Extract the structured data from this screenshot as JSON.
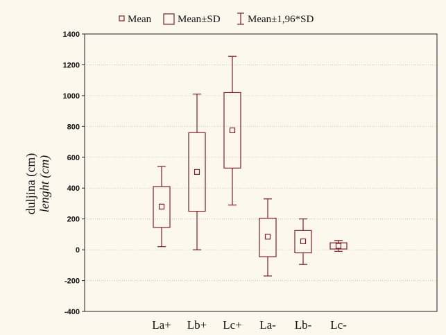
{
  "chart_data": {
    "type": "box",
    "categories": [
      "La+",
      "Lb+",
      "Lc+",
      "La-",
      "Lb-",
      "Lc-"
    ],
    "series": [
      {
        "mean": [
          280,
          505,
          775,
          85,
          55,
          25
        ],
        "mean_minus_sd": [
          145,
          250,
          530,
          -45,
          -20,
          5
        ],
        "mean_plus_sd": [
          410,
          760,
          1020,
          205,
          125,
          45
        ],
        "mean_minus_1_96sd": [
          20,
          0,
          290,
          -170,
          -95,
          -10
        ],
        "mean_plus_1_96sd": [
          540,
          1010,
          1255,
          330,
          200,
          60
        ]
      }
    ],
    "ylabel": "duljina (cm)",
    "ylabel_italic": "lenght (cm)",
    "ylim": [
      -400,
      1400
    ],
    "yticks": [
      "-400",
      "-200",
      "0",
      "200",
      "400",
      "600",
      "800",
      "1000",
      "1200",
      "1400"
    ],
    "grid": true,
    "legend_placement": "top",
    "legend": {
      "mean": "Mean",
      "sd": "Mean±SD",
      "ci": "Mean±1,96*SD"
    },
    "colors": {
      "box": "#7a2228",
      "grid": "#bdbdbd",
      "background": "#fdf8ee"
    }
  }
}
